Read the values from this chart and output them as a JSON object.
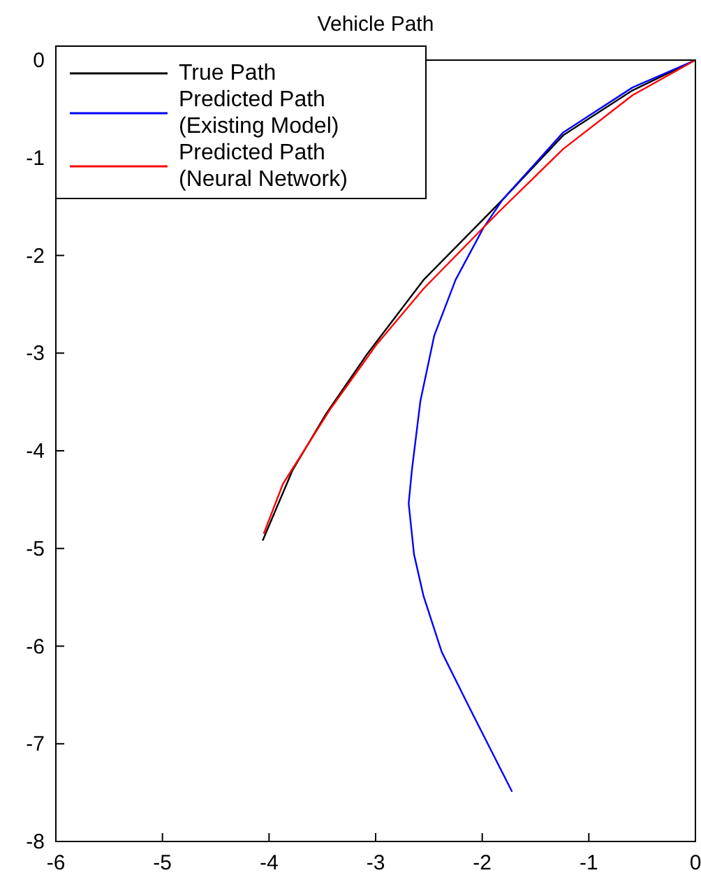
{
  "chart_data": {
    "type": "line",
    "title": "Vehicle Path",
    "xlim": [
      -6,
      0
    ],
    "ylim": [
      -8,
      0
    ],
    "xticks": [
      -6,
      -5,
      -4,
      -3,
      -2,
      -1,
      0
    ],
    "yticks": [
      -8,
      -7,
      -6,
      -5,
      -4,
      -3,
      -2,
      -1,
      0
    ],
    "legend": "top left",
    "grid": false,
    "series": [
      {
        "name": "True Path",
        "color": "#000000",
        "x": [
          0,
          -0.59,
          -1.24,
          -1.81,
          -2.55,
          -3.08,
          -3.47,
          -3.78,
          -4.06
        ],
        "values": [
          0,
          -0.31,
          -0.77,
          -1.43,
          -2.25,
          -3.01,
          -3.63,
          -4.2,
          -4.92
        ]
      },
      {
        "name": "Predicted Path (Existing Model)",
        "color": "#0000ff",
        "x": [
          0,
          -0.59,
          -1.24,
          -1.81,
          -1.99,
          -2.25,
          -2.45,
          -2.58,
          -2.66,
          -2.69,
          -2.64,
          -2.55,
          -2.38,
          -2.12,
          -1.72
        ],
        "values": [
          0,
          -0.28,
          -0.74,
          -1.43,
          -1.72,
          -2.25,
          -2.82,
          -3.49,
          -4.2,
          -4.54,
          -5.06,
          -5.49,
          -6.06,
          -6.63,
          -7.49
        ]
      },
      {
        "name": "Predicted Path (Neural Network)",
        "color": "#ff0000",
        "x": [
          0,
          -0.59,
          -1.24,
          -1.85,
          -2.55,
          -2.99,
          -3.43,
          -3.87,
          -4.05
        ],
        "values": [
          0,
          -0.36,
          -0.91,
          -1.56,
          -2.34,
          -2.91,
          -3.58,
          -4.34,
          -4.85
        ]
      }
    ]
  }
}
